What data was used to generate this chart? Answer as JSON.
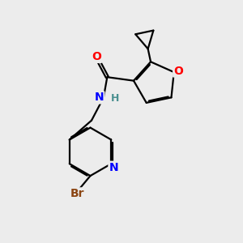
{
  "background_color": "#ececec",
  "bond_color": "#000000",
  "atom_colors": {
    "O": "#ff0000",
    "N": "#0000ff",
    "Br": "#8b4513",
    "H": "#4a9090",
    "C": "#000000"
  },
  "font_size_atoms": 10,
  "font_size_h": 9,
  "line_width": 1.6,
  "dbo": 0.055
}
